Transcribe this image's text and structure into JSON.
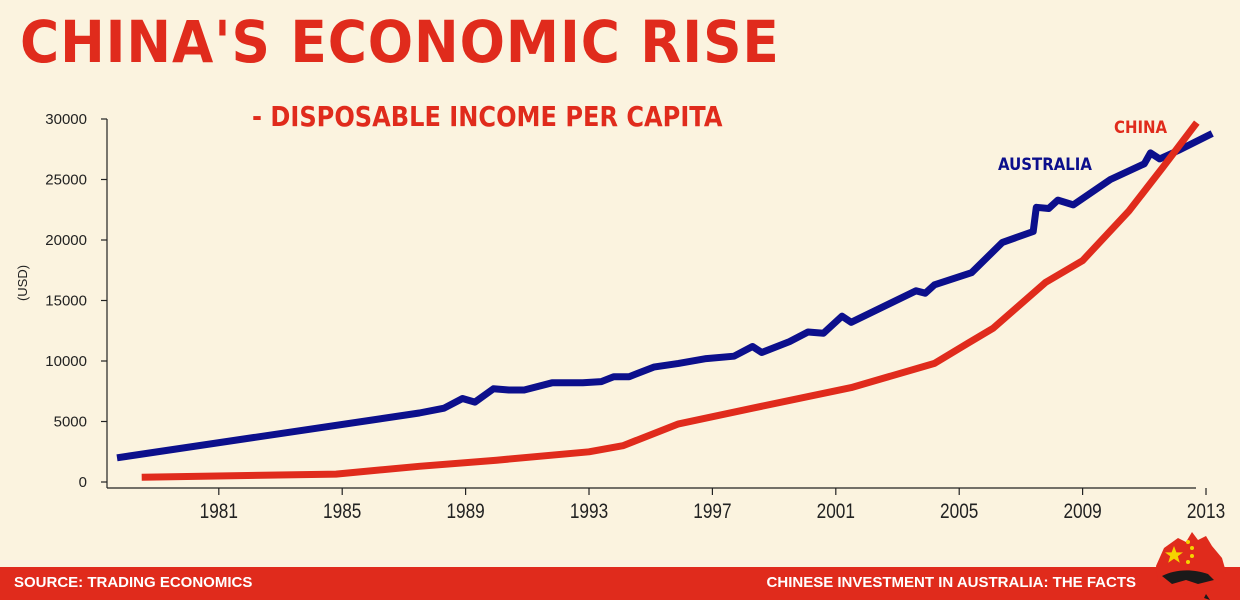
{
  "title": "CHINA'S ECONOMIC RISE",
  "subtitle": "- DISPOSABLE INCOME PER CAPITA",
  "footer": {
    "source": "SOURCE: TRADING ECONOMICS",
    "brand": "CHINESE INVESTMENT IN AUSTRALIA: THE FACTS"
  },
  "colors": {
    "accent": "#e02b1c",
    "australia": "#0c0f8c",
    "background": "#fbf3df",
    "logo_star": "#f5d400"
  },
  "logo": {
    "icon": "australia-map-with-china-stars-icon"
  },
  "chart_data": {
    "type": "line",
    "title": "CHINA'S ECONOMIC RISE",
    "subtitle": "- DISPOSABLE INCOME PER CAPITA",
    "ylabel": "(USD)",
    "xlabel": "",
    "xlim": [
      1977.7,
      2013.2
    ],
    "ylim": [
      0,
      30000
    ],
    "x_ticks": [
      "1981",
      "1985",
      "1989",
      "1993",
      "1997",
      "2001",
      "2005",
      "2009",
      "2013"
    ],
    "y_ticks": [
      "0",
      "5000",
      "10000",
      "15000",
      "20000",
      "25000",
      "30000"
    ],
    "grid": false,
    "legend": "inline labels",
    "series": [
      {
        "name": "AUSTRALIA",
        "color": "#0c0f8c",
        "points": [
          [
            1977.7,
            2000
          ],
          [
            1987.5,
            5700
          ],
          [
            1988.3,
            6100
          ],
          [
            1988.9,
            6900
          ],
          [
            1989.3,
            6600
          ],
          [
            1989.9,
            7700
          ],
          [
            1990.4,
            7600
          ],
          [
            1990.9,
            7600
          ],
          [
            1991.8,
            8200
          ],
          [
            1992.8,
            8200
          ],
          [
            1993.4,
            8300
          ],
          [
            1993.8,
            8700
          ],
          [
            1994.3,
            8700
          ],
          [
            1995.1,
            9500
          ],
          [
            1995.9,
            9800
          ],
          [
            1996.8,
            10200
          ],
          [
            1997.7,
            10400
          ],
          [
            1998.3,
            11200
          ],
          [
            1998.6,
            10700
          ],
          [
            1999.5,
            11600
          ],
          [
            2000.1,
            12400
          ],
          [
            2000.6,
            12300
          ],
          [
            2001.2,
            13700
          ],
          [
            2001.5,
            13200
          ],
          [
            2003.6,
            15800
          ],
          [
            2003.9,
            15600
          ],
          [
            2004.2,
            16300
          ],
          [
            2005.4,
            17300
          ],
          [
            2006.4,
            19800
          ],
          [
            2007.4,
            20700
          ],
          [
            2007.5,
            22700
          ],
          [
            2007.9,
            22600
          ],
          [
            2008.2,
            23300
          ],
          [
            2008.7,
            22900
          ],
          [
            2009.9,
            25000
          ],
          [
            2011.0,
            26300
          ],
          [
            2011.2,
            27200
          ],
          [
            2011.5,
            26700
          ],
          [
            2012.1,
            27400
          ],
          [
            2013.2,
            28800
          ]
        ]
      },
      {
        "name": "CHINA",
        "color": "#e02b1c",
        "points": [
          [
            1978.5,
            400
          ],
          [
            1984.8,
            650
          ],
          [
            1987.5,
            1300
          ],
          [
            1990.0,
            1800
          ],
          [
            1993.0,
            2500
          ],
          [
            1994.1,
            3000
          ],
          [
            1995.9,
            4800
          ],
          [
            1998.3,
            6100
          ],
          [
            2001.5,
            7800
          ],
          [
            2004.2,
            9800
          ],
          [
            2005.3,
            11500
          ],
          [
            2006.1,
            12700
          ],
          [
            2007.8,
            16500
          ],
          [
            2009.0,
            18300
          ],
          [
            2010.5,
            22400
          ],
          [
            2011.6,
            26000
          ],
          [
            2012.7,
            29700
          ]
        ]
      }
    ]
  }
}
